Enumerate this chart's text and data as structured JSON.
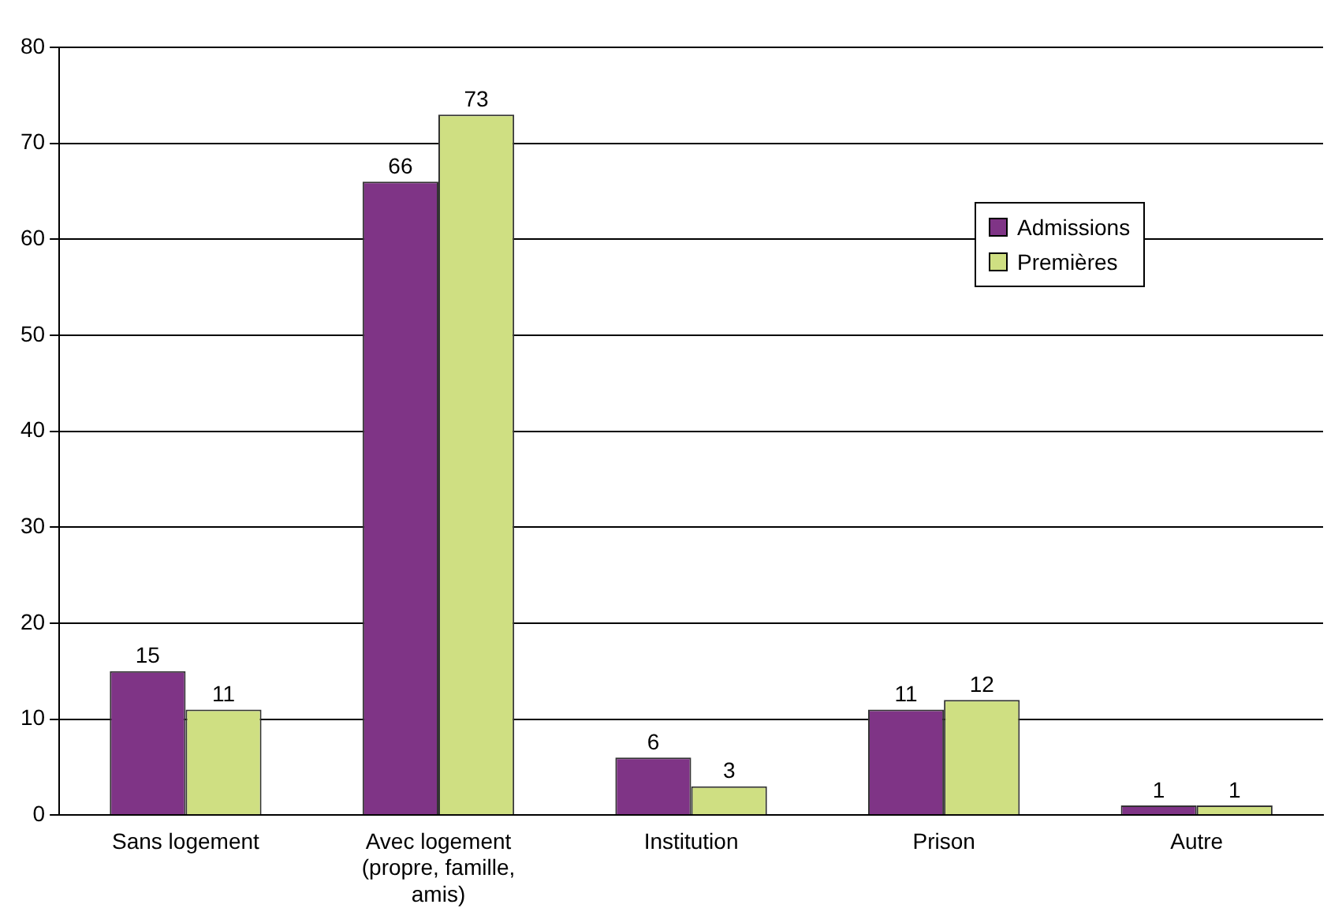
{
  "chart_data": {
    "type": "bar",
    "categories": [
      "Sans logement",
      "Avec logement (propre, famille, amis)",
      "Institution",
      "Prison",
      "Autre"
    ],
    "series": [
      {
        "name": "Admissions",
        "color": "#7f3486",
        "values": [
          15,
          66,
          6,
          11,
          1
        ]
      },
      {
        "name": "Premières",
        "color": "#cfdf82",
        "values": [
          11,
          73,
          3,
          12,
          1
        ]
      }
    ],
    "ylim": [
      0,
      80
    ],
    "yticks": [
      0,
      10,
      20,
      30,
      40,
      50,
      60,
      70,
      80
    ],
    "grid": "y",
    "legend": "top right",
    "data_labels": true
  }
}
